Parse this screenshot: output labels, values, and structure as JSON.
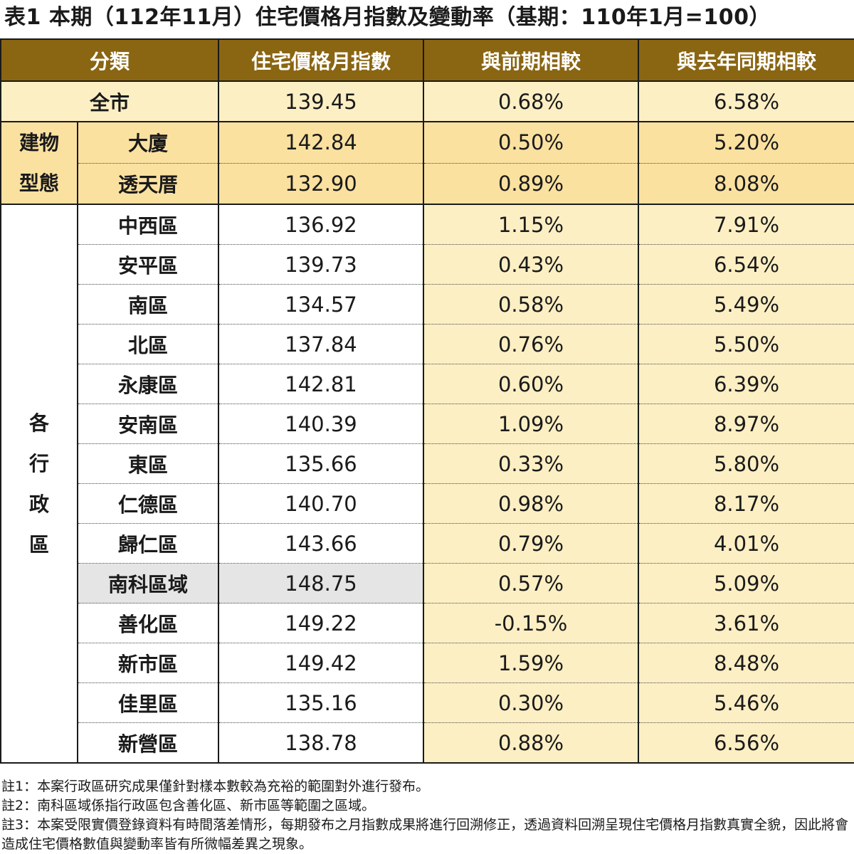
{
  "title": "表1 本期（112年11月）住宅價格月指數及變動率（基期：110年1月=100）",
  "headers": [
    "分類",
    "住宅價格月指數",
    "與前期相較",
    "與去年同期相較"
  ],
  "all_city": {
    "label": "全市",
    "index": "139.45",
    "mom": "0.68%",
    "yoy": "6.58%"
  },
  "building_type": {
    "group_label": [
      "建物",
      "型態"
    ],
    "rows": [
      {
        "label": "大廈",
        "index": "142.84",
        "mom": "0.50%",
        "yoy": "5.20%"
      },
      {
        "label": "透天厝",
        "index": "132.90",
        "mom": "0.89%",
        "yoy": "8.08%"
      }
    ]
  },
  "districts": {
    "group_label": [
      "各",
      "行",
      "政",
      "區"
    ],
    "rows": [
      {
        "label": "中西區",
        "index": "136.92",
        "mom": "1.15%",
        "yoy": "7.91%"
      },
      {
        "label": "安平區",
        "index": "139.73",
        "mom": "0.43%",
        "yoy": "6.54%"
      },
      {
        "label": "南區",
        "index": "134.57",
        "mom": "0.58%",
        "yoy": "5.49%"
      },
      {
        "label": "北區",
        "index": "137.84",
        "mom": "0.76%",
        "yoy": "5.50%"
      },
      {
        "label": "永康區",
        "index": "142.81",
        "mom": "0.60%",
        "yoy": "6.39%"
      },
      {
        "label": "安南區",
        "index": "140.39",
        "mom": "1.09%",
        "yoy": "8.97%"
      },
      {
        "label": "東區",
        "index": "135.66",
        "mom": "0.33%",
        "yoy": "5.80%"
      },
      {
        "label": "仁德區",
        "index": "140.70",
        "mom": "0.98%",
        "yoy": "8.17%"
      },
      {
        "label": "歸仁區",
        "index": "143.66",
        "mom": "0.79%",
        "yoy": "4.01%"
      },
      {
        "label": "南科區域",
        "index": "148.75",
        "mom": "0.57%",
        "yoy": "5.09%"
      },
      {
        "label": "善化區",
        "index": "149.22",
        "mom": "-0.15%",
        "yoy": "3.61%"
      },
      {
        "label": "新市區",
        "index": "149.42",
        "mom": "1.59%",
        "yoy": "8.48%"
      },
      {
        "label": "佳里區",
        "index": "135.16",
        "mom": "0.30%",
        "yoy": "5.46%"
      },
      {
        "label": "新營區",
        "index": "138.78",
        "mom": "0.88%",
        "yoy": "6.56%"
      }
    ]
  },
  "notes": [
    "註1：本案行政區研究成果僅針對樣本數較為充裕的範圍對外進行發布。",
    "註2：南科區域係指行政區包含善化區、新市區等範圍之區域。",
    "註3：本案受限實價登錄資料有時間落差情形，每期發布之月指數成果將進行回溯修正，透過資料回溯呈現住宅價格月指數真實全貌，因此將會造成住宅價格數值與變動率皆有所微幅差異之現象。"
  ],
  "colors": {
    "header_bg": "#8a6512",
    "light_gold": "#fdefc4",
    "mid_gold": "#fbe1a0",
    "highlight_gray": "#e5e5e5"
  }
}
